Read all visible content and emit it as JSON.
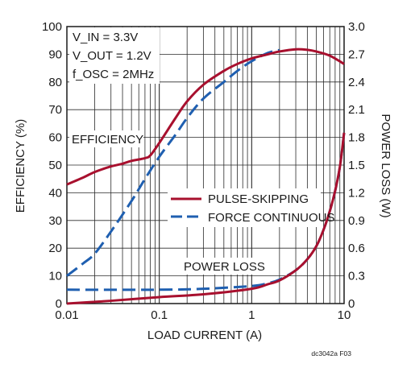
{
  "chart_data": {
    "type": "line",
    "x_axis": {
      "label": "LOAD CURRENT (A)",
      "scale": "log",
      "range": [
        0.01,
        10
      ],
      "ticks": [
        0.01,
        0.1,
        1,
        10
      ],
      "tick_labels": [
        "0.01",
        "0.1",
        "1",
        "10"
      ]
    },
    "y_axis_left": {
      "label": "EFFICIENCY (%)",
      "range": [
        0,
        100
      ],
      "ticks": [
        0,
        10,
        20,
        30,
        40,
        50,
        60,
        70,
        80,
        90,
        100
      ],
      "tick_labels": [
        "0",
        "10",
        "20",
        "30",
        "40",
        "50",
        "60",
        "70",
        "80",
        "90",
        "100"
      ]
    },
    "y_axis_right": {
      "label": "POWER LOSS (W)",
      "range": [
        0,
        3.0
      ],
      "ticks": [
        0,
        0.3,
        0.6,
        0.9,
        1.2,
        1.5,
        1.8,
        2.1,
        2.4,
        2.7,
        3.0
      ],
      "tick_labels": [
        "0",
        "0.3",
        "0.6",
        "0.9",
        "1.2",
        "1.5",
        "1.8",
        "2.1",
        "2.4",
        "2.7",
        "3.0"
      ]
    },
    "grid": true,
    "conditions": [
      "V_IN = 3.3V",
      "V_OUT = 1.2V",
      "f_OSC = 2MHz"
    ],
    "annotations": [
      "EFFICIENCY",
      "POWER LOSS"
    ],
    "legend": {
      "placement": "center-right",
      "entries": [
        {
          "label": "PULSE-SKIPPING",
          "color": "#a8102e",
          "dash": "solid"
        },
        {
          "label": "FORCE CONTINUOUS",
          "color": "#1f5fb0",
          "dash": "dashed"
        }
      ]
    },
    "series": [
      {
        "name": "PULSE-SKIPPING",
        "quantity": "efficiency",
        "axis": "left",
        "color": "#a8102e",
        "dash": "solid",
        "x": [
          0.01,
          0.015,
          0.02,
          0.03,
          0.04,
          0.05,
          0.07,
          0.08,
          0.1,
          0.15,
          0.2,
          0.3,
          0.5,
          0.7,
          1,
          1.5,
          2,
          3,
          4,
          5,
          7,
          10
        ],
        "y": [
          43,
          45.5,
          47.5,
          49.5,
          50.5,
          51.5,
          52.5,
          53.5,
          58,
          67,
          73,
          79,
          84,
          86.5,
          88.5,
          90,
          91,
          91.8,
          91.6,
          91,
          89.5,
          86.5
        ]
      },
      {
        "name": "FORCE CONTINUOUS",
        "quantity": "efficiency",
        "axis": "left",
        "color": "#1f5fb0",
        "dash": "dashed",
        "x": [
          0.01,
          0.015,
          0.02,
          0.03,
          0.05,
          0.07,
          0.1,
          0.15,
          0.2,
          0.3,
          0.5,
          0.7,
          1,
          1.5,
          2
        ],
        "y": [
          10,
          14.5,
          18,
          26,
          37,
          45,
          53,
          61,
          67,
          74,
          80,
          84,
          87.5,
          90.5,
          91.5
        ]
      },
      {
        "name": "PULSE-SKIPPING",
        "quantity": "power loss",
        "axis": "right",
        "color": "#a8102e",
        "dash": "solid",
        "x": [
          0.01,
          0.03,
          0.1,
          0.3,
          1,
          1.5,
          2,
          3,
          4,
          5,
          6,
          7,
          8,
          9,
          10
        ],
        "y": [
          0.0,
          0.03,
          0.07,
          0.1,
          0.16,
          0.21,
          0.25,
          0.36,
          0.48,
          0.62,
          0.8,
          1.0,
          1.22,
          1.48,
          1.85
        ]
      },
      {
        "name": "FORCE CONTINUOUS",
        "quantity": "power loss",
        "axis": "right",
        "color": "#1f5fb0",
        "dash": "dashed",
        "x": [
          0.01,
          0.1,
          0.3,
          1,
          1.5,
          2,
          3,
          4,
          5,
          6,
          7,
          8,
          9,
          10
        ],
        "y": [
          0.15,
          0.15,
          0.16,
          0.19,
          0.22,
          0.26,
          0.36,
          0.48,
          0.62,
          0.8,
          1.0,
          1.22,
          1.48,
          1.85
        ]
      }
    ],
    "footnote": "dc3042a F03"
  }
}
